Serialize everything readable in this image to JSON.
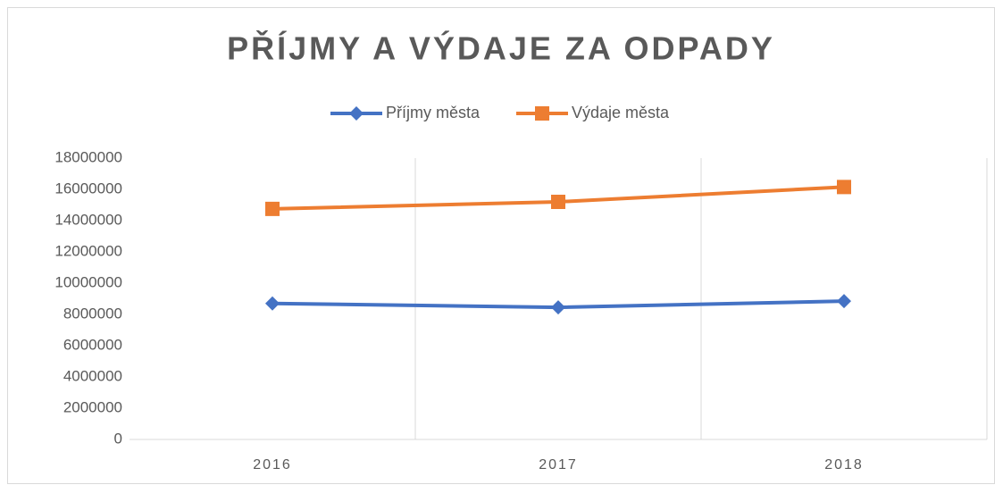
{
  "chart_data": {
    "type": "line",
    "title": "PŘÍJMY A VÝDAJE ZA ODPADY",
    "categories": [
      "2016",
      "2017",
      "2018"
    ],
    "series": [
      {
        "name": "Příjmy města",
        "color": "#4472c4",
        "marker": "diamond",
        "values": [
          8700000,
          8450000,
          8850000
        ]
      },
      {
        "name": "Výdaje města",
        "color": "#ed7d31",
        "marker": "square",
        "values": [
          14750000,
          15200000,
          16150000
        ]
      }
    ],
    "ylim": [
      0,
      18000000
    ],
    "yticks": [
      0,
      2000000,
      4000000,
      6000000,
      8000000,
      10000000,
      12000000,
      14000000,
      16000000,
      18000000
    ],
    "legend": "top"
  }
}
